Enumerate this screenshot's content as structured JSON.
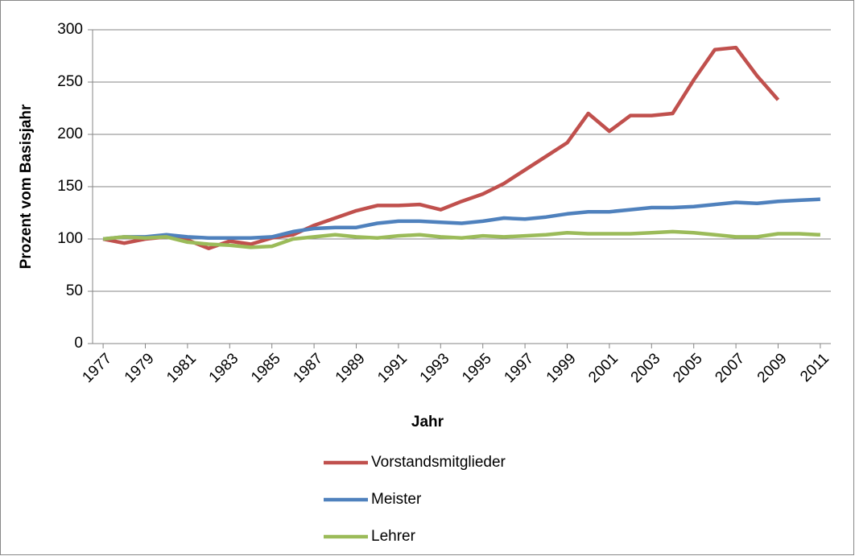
{
  "chart_data": {
    "type": "line",
    "y_label": "Prozent vom Basisjahr",
    "x_label": "Jahr",
    "x": [
      1977,
      1978,
      1979,
      1980,
      1981,
      1982,
      1983,
      1984,
      1985,
      1986,
      1987,
      1988,
      1989,
      1990,
      1991,
      1992,
      1993,
      1994,
      1995,
      1996,
      1997,
      1998,
      1999,
      2000,
      2001,
      2002,
      2003,
      2004,
      2005,
      2006,
      2007,
      2008,
      2009,
      2010,
      2011
    ],
    "xlim": [
      1976.5,
      2011.5
    ],
    "xticks": [
      1977,
      1979,
      1981,
      1983,
      1985,
      1987,
      1989,
      1991,
      1993,
      1995,
      1997,
      1999,
      2001,
      2003,
      2005,
      2007,
      2009,
      2011
    ],
    "ylim": [
      0,
      300
    ],
    "yticks": [
      0,
      50,
      100,
      150,
      200,
      250,
      300
    ],
    "grid": true,
    "legend": "bottom",
    "series": [
      {
        "name": "Vorstandsmitglieder",
        "color": "#c0504d",
        "values": [
          100,
          96,
          100,
          102,
          99,
          91,
          98,
          95,
          101,
          104,
          113,
          120,
          127,
          132,
          132,
          133,
          128,
          136,
          143,
          153,
          166,
          179,
          192,
          220,
          203,
          218,
          218,
          220,
          252,
          281,
          283,
          256,
          233,
          null,
          null
        ]
      },
      {
        "name": "Meister",
        "color": "#4f81bd",
        "values": [
          100,
          102,
          102,
          104,
          102,
          101,
          101,
          101,
          102,
          107,
          110,
          111,
          111,
          115,
          117,
          117,
          116,
          115,
          117,
          120,
          119,
          121,
          124,
          126,
          126,
          128,
          130,
          130,
          131,
          133,
          135,
          134,
          136,
          137,
          138
        ]
      },
      {
        "name": "Lehrer",
        "color": "#9bbb59",
        "values": [
          100,
          102,
          101,
          102,
          97,
          95,
          94,
          92,
          93,
          100,
          102,
          104,
          102,
          101,
          103,
          104,
          102,
          101,
          103,
          102,
          103,
          104,
          106,
          105,
          105,
          105,
          106,
          107,
          106,
          104,
          102,
          102,
          105,
          105,
          104
        ]
      }
    ]
  }
}
